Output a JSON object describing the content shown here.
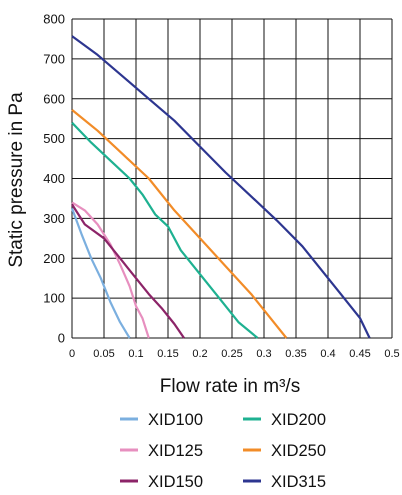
{
  "chart_data": {
    "type": "line",
    "xlabel": "Flow rate in m³/s",
    "ylabel": "Static pressure in Pa",
    "xlim": [
      0,
      0.5
    ],
    "ylim": [
      0,
      800
    ],
    "x_ticks": [
      "0",
      "0.05",
      "0.1",
      "0.15",
      "0.2",
      "0.25",
      "0.3",
      "0.35",
      "0.4",
      "0.45",
      "0.5"
    ],
    "y_ticks": [
      "0",
      "100",
      "200",
      "300",
      "400",
      "500",
      "600",
      "700",
      "800"
    ],
    "grid": true,
    "legend_position": "bottom",
    "series": [
      {
        "name": "XID100",
        "color": "#7bafdf",
        "x": [
          0,
          0.015,
          0.03,
          0.045,
          0.06,
          0.075,
          0.09
        ],
        "y": [
          325,
          260,
          200,
          150,
          90,
          40,
          0
        ]
      },
      {
        "name": "XID125",
        "color": "#e78fbf",
        "x": [
          0,
          0.02,
          0.04,
          0.06,
          0.075,
          0.09,
          0.1,
          0.11,
          0.12
        ],
        "y": [
          340,
          320,
          285,
          235,
          185,
          130,
          80,
          50,
          0
        ]
      },
      {
        "name": "XID150",
        "color": "#8c2468",
        "x": [
          0,
          0.02,
          0.05,
          0.08,
          0.1,
          0.12,
          0.14,
          0.16,
          0.175
        ],
        "y": [
          335,
          285,
          250,
          190,
          150,
          110,
          75,
          35,
          0
        ]
      },
      {
        "name": "XID200",
        "color": "#1eb191",
        "x": [
          0,
          0.03,
          0.06,
          0.09,
          0.11,
          0.13,
          0.15,
          0.17,
          0.2,
          0.23,
          0.26,
          0.29
        ],
        "y": [
          540,
          490,
          445,
          400,
          360,
          310,
          280,
          220,
          160,
          100,
          40,
          0
        ]
      },
      {
        "name": "XID250",
        "color": "#f28c28",
        "x": [
          0,
          0.04,
          0.08,
          0.12,
          0.16,
          0.2,
          0.24,
          0.28,
          0.31,
          0.335
        ],
        "y": [
          572,
          520,
          460,
          400,
          320,
          250,
          180,
          110,
          50,
          0
        ]
      },
      {
        "name": "XID315",
        "color": "#2d3690",
        "x": [
          0,
          0.04,
          0.08,
          0.12,
          0.16,
          0.2,
          0.24,
          0.28,
          0.32,
          0.36,
          0.39,
          0.42,
          0.45,
          0.465
        ],
        "y": [
          757,
          710,
          655,
          600,
          545,
          480,
          415,
          355,
          295,
          230,
          170,
          110,
          50,
          0
        ]
      }
    ]
  }
}
